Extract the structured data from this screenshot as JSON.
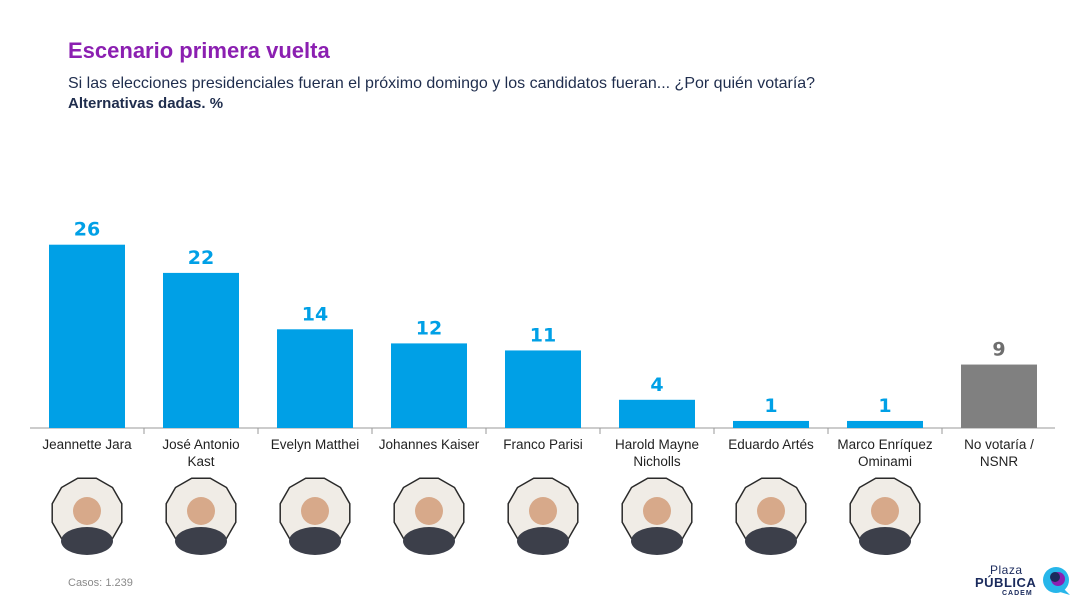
{
  "header": {
    "title": "Escenario primera vuelta",
    "subtitle": "Si las elecciones presidenciales fueran el próximo domingo y los candidatos fueran... ¿Por quién votaría?",
    "subtitle2": "Alternativas dadas. %"
  },
  "chart_data": {
    "type": "bar",
    "title": "Escenario primera vuelta",
    "unit": "%",
    "categories": [
      [
        "Jeannette Jara"
      ],
      [
        "José Antonio",
        "Kast"
      ],
      [
        "Evelyn Matthei"
      ],
      [
        "Johannes Kaiser"
      ],
      [
        "Franco Parisi"
      ],
      [
        "Harold Mayne",
        "Nicholls"
      ],
      [
        "Eduardo Artés"
      ],
      [
        "Marco Enríquez",
        "Ominami"
      ],
      [
        "No votaría /",
        "NSNR"
      ]
    ],
    "values": [
      26,
      22,
      14,
      12,
      11,
      4,
      1,
      1,
      9
    ],
    "colors": [
      "#00a0e6",
      "#00a0e6",
      "#00a0e6",
      "#00a0e6",
      "#00a0e6",
      "#00a0e6",
      "#00a0e6",
      "#00a0e6",
      "#808080"
    ],
    "has_photo": [
      true,
      true,
      true,
      true,
      true,
      true,
      true,
      true,
      false
    ],
    "label_colors": {
      "candidate": "#00a0e6",
      "other": "#6e6e6e"
    },
    "ylim": [
      0,
      27
    ],
    "xlabel": "",
    "ylabel": ""
  },
  "footer": {
    "casos_label": "Casos:",
    "casos_value": "1.239"
  },
  "brand": {
    "line1": "Plaza",
    "line2": "PÚBLICA",
    "line3": "CADEM",
    "colors": {
      "navy": "#1a2a5c",
      "cyan": "#27b6ea",
      "purple": "#8b1fb1"
    }
  }
}
